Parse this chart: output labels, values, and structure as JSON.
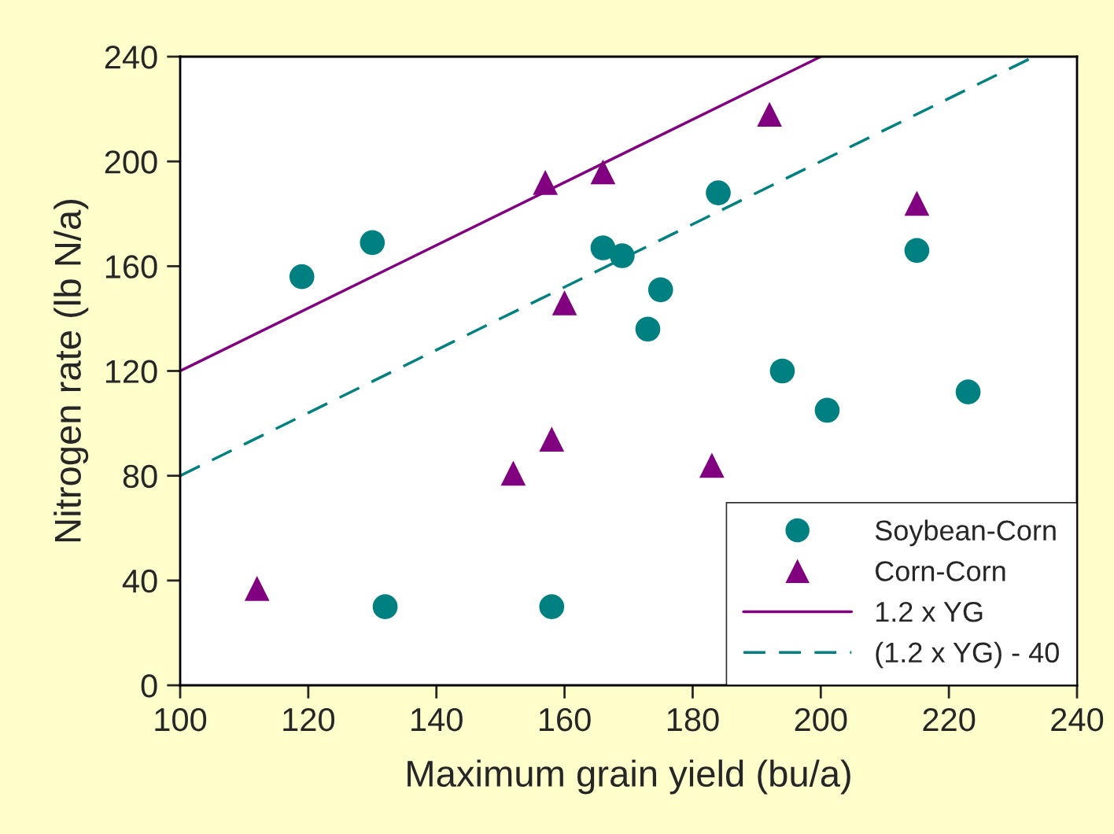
{
  "chart_data": {
    "type": "scatter",
    "xlabel": "Maximum grain yield (bu/a)",
    "ylabel": "Nitrogen rate (lb N/a)",
    "xlim": [
      100,
      240
    ],
    "xticks": [
      100,
      120,
      140,
      160,
      180,
      200,
      220,
      240
    ],
    "ylim": [
      0,
      240
    ],
    "yticks": [
      0,
      40,
      80,
      120,
      160,
      200,
      240
    ],
    "grid": false,
    "legend": "bottom right",
    "series": [
      {
        "name": "Soybean-Corn",
        "marker": "circle",
        "color": "#008080",
        "x": [
          119,
          130,
          132,
          158,
          166,
          169,
          175,
          173,
          184,
          194,
          201,
          215,
          223
        ],
        "values": [
          156,
          169,
          30,
          30,
          167,
          164,
          151,
          136,
          188,
          120,
          105,
          166,
          112
        ]
      },
      {
        "name": "Corn-Corn",
        "marker": "triangle",
        "color": "#800080",
        "x": [
          112,
          152,
          158,
          157,
          160,
          166,
          183,
          192,
          215
        ],
        "values": [
          37,
          81,
          94,
          192,
          146,
          196,
          84,
          218,
          184
        ]
      },
      {
        "name": "1.2 x YG",
        "type": "line",
        "line_style": "solid",
        "color": "#800080",
        "x": [
          100,
          200
        ],
        "values": [
          120,
          240
        ]
      },
      {
        "name": "(1.2 x YG) - 40",
        "type": "line",
        "line_style": "dashed",
        "color": "#008080",
        "x": [
          100,
          233.3
        ],
        "values": [
          80,
          240
        ]
      }
    ]
  }
}
